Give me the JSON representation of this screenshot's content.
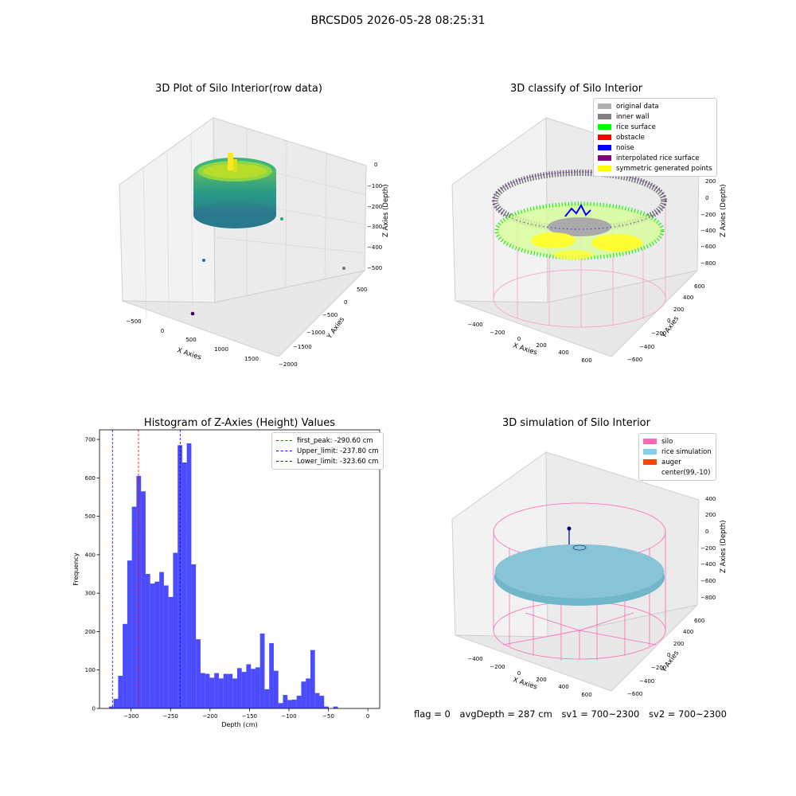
{
  "figure": {
    "title": "BRCSD05 2026-05-28 08:25:31"
  },
  "panel1": {
    "title": "3D Plot of Silo Interior(row data)",
    "xlabel": "X Axies",
    "ylabel": "Y Axies",
    "zlabel": "Z Axies (Depth)",
    "xticks": [
      "−500",
      "0",
      "500",
      "1000",
      "1500"
    ],
    "yticks": [
      "500",
      "0",
      "−500",
      "−1000",
      "−1500",
      "−2000"
    ],
    "zticks": [
      "0",
      "−100",
      "−200",
      "−300",
      "−400",
      "−500"
    ],
    "colormap": "viridis"
  },
  "panel2": {
    "title": "3D classify of Silo Interior",
    "xlabel": "X Axies",
    "ylabel": "Y Axies",
    "zlabel": "Z Axies (Depth)",
    "xticks": [
      "−400",
      "−200",
      "0",
      "200",
      "400",
      "600"
    ],
    "yticks": [
      "600",
      "400",
      "200",
      "0",
      "−200",
      "−400",
      "−600"
    ],
    "zticks": [
      "200",
      "0",
      "−200",
      "−400",
      "−600",
      "−800"
    ],
    "legend": [
      {
        "label": "original data",
        "color": "#b0b0b0"
      },
      {
        "label": "inner wall",
        "color": "#808080"
      },
      {
        "label": "rice surface",
        "color": "#00ff00"
      },
      {
        "label": "obstacle",
        "color": "#ff0000"
      },
      {
        "label": "noise",
        "color": "#0000ff"
      },
      {
        "label": "interpolated rice surface",
        "color": "#800080"
      },
      {
        "label": "symmetric generated points",
        "color": "#ffff00"
      }
    ]
  },
  "panel3": {
    "title": "3D simulation of Silo Interior",
    "xlabel": "X Axies",
    "ylabel": "Y Axies",
    "zlabel": "Z Axies (Depth)",
    "xticks": [
      "−400",
      "−200",
      "0",
      "200",
      "400",
      "600"
    ],
    "yticks": [
      "600",
      "400",
      "200",
      "0",
      "−200",
      "−400",
      "−600"
    ],
    "zticks": [
      "400",
      "200",
      "0",
      "−200",
      "−400",
      "−600",
      "−800"
    ],
    "legend": [
      {
        "label": "silo",
        "color": "#ff69b4"
      },
      {
        "label": "rice simulation",
        "color": "#87ceeb"
      },
      {
        "label": "auger",
        "color": "#ff4500"
      },
      {
        "label": "center(99,-10)",
        "color": "#ffffff"
      }
    ]
  },
  "status": {
    "flag": "flag = 0",
    "avg_depth": "avgDepth = 287 cm",
    "sv1": "sv1 = 700~2300",
    "sv2": "sv2 = 700~2300"
  },
  "chart_data": {
    "type": "bar",
    "title": "Histogram of Z-Axies (Height) Values",
    "xlabel": "Depth (cm)",
    "ylabel": "Frequency",
    "xlim": [
      -340,
      15
    ],
    "ylim": [
      0,
      725
    ],
    "xticks": [
      -300,
      -250,
      -200,
      -150,
      -100,
      -50,
      0
    ],
    "yticks": [
      0,
      100,
      200,
      300,
      400,
      500,
      600,
      700
    ],
    "bin_width": 5.8,
    "bin_start": -328,
    "values": [
      5,
      25,
      85,
      220,
      385,
      525,
      605,
      565,
      350,
      325,
      330,
      355,
      320,
      290,
      405,
      685,
      640,
      690,
      375,
      180,
      92,
      90,
      80,
      92,
      78,
      90,
      90,
      78,
      105,
      95,
      115,
      103,
      107,
      195,
      50,
      170,
      98,
      14,
      35,
      22,
      23,
      33,
      70,
      78,
      152,
      40,
      33,
      5,
      0,
      5
    ],
    "color": "#0000ff",
    "grid": false,
    "legend_position": "top-right",
    "lines": [
      {
        "label": "first_peak: -290.60 cm",
        "x": -290.6,
        "color": "#ff0000"
      },
      {
        "label": "Upper_limit: -237.80 cm",
        "x": -237.8,
        "color": "#0000ff"
      },
      {
        "label": "Lower_limit: -323.60 cm",
        "x": -323.6,
        "color": "#0000ff"
      }
    ]
  }
}
